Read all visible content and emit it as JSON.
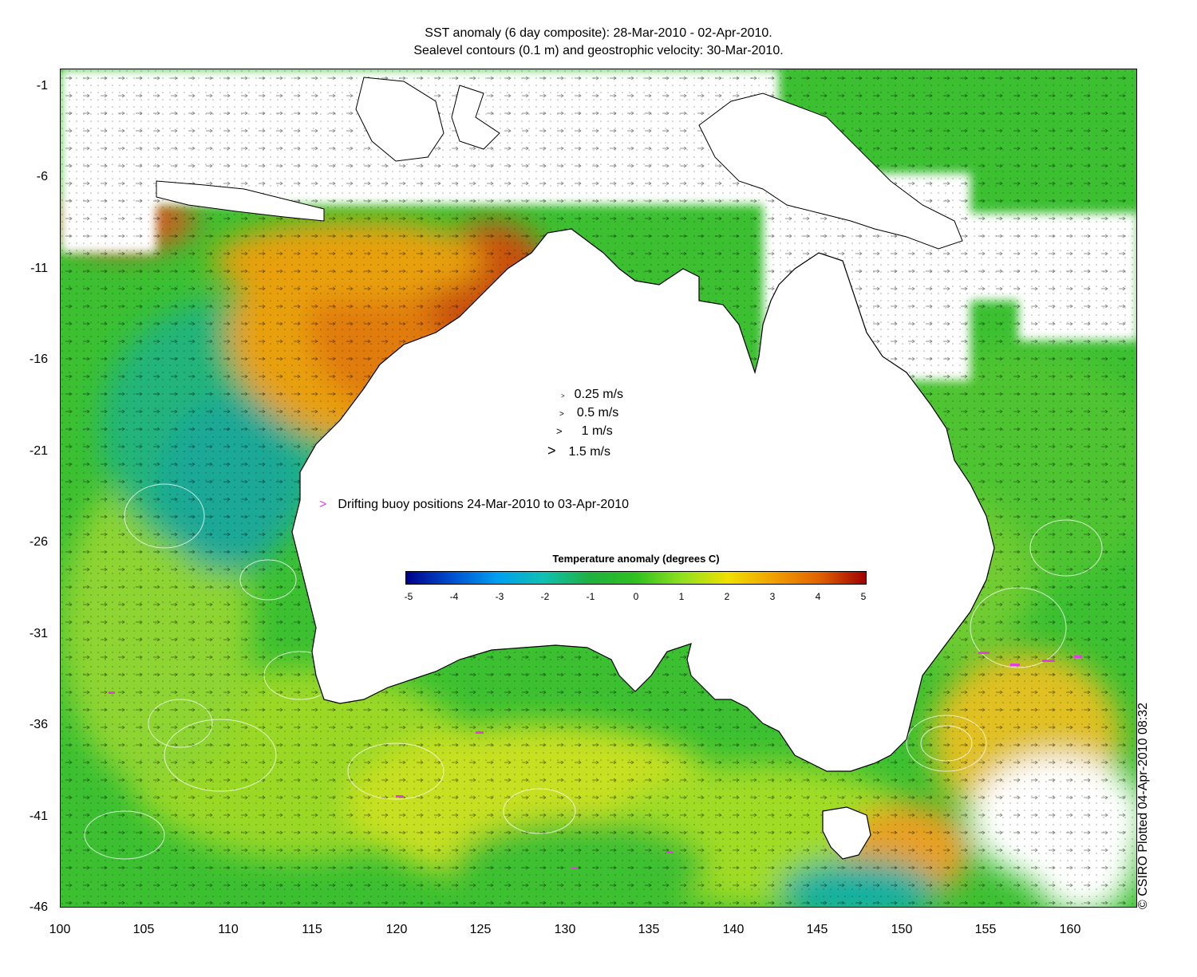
{
  "title": {
    "line1": "SST anomaly (6 day composite): 28-Mar-2010 - 02-Apr-2010.",
    "line2": "Sealevel contours (0.1 m) and geostrophic velocity: 30-Mar-2010."
  },
  "axes": {
    "y_ticks": [
      "-1",
      "-6",
      "-11",
      "-16",
      "-21",
      "-26",
      "-31",
      "-36",
      "-41",
      "-46"
    ],
    "x_ticks": [
      "100",
      "105",
      "110",
      "115",
      "120",
      "125",
      "130",
      "135",
      "140",
      "145",
      "150",
      "155",
      "160"
    ],
    "lon_range": [
      100,
      164
    ],
    "lat_range": [
      -46,
      -0.5
    ]
  },
  "velocity_legend": [
    {
      "label": "0.25 m/s",
      "speed": 0.25
    },
    {
      "label": "0.5 m/s",
      "speed": 0.5
    },
    {
      "label": "1 m/s",
      "speed": 1
    },
    {
      "label": "1.5 m/s",
      "speed": 1.5
    }
  ],
  "buoy_note": {
    "marker": ">",
    "text": "Drifting buoy positions 24-Mar-2010 to 03-Apr-2010"
  },
  "colorbar": {
    "title": "Temperature anomaly (degrees C)",
    "ticks": [
      "-5",
      "-4",
      "-3",
      "-2",
      "-1",
      "0",
      "1",
      "2",
      "3",
      "4",
      "5"
    ],
    "range": [
      -5,
      5
    ],
    "colors": [
      "#00008b",
      "#0050d0",
      "#00a0f0",
      "#10c0b0",
      "#20b040",
      "#30c020",
      "#90e020",
      "#f0e000",
      "#f0a000",
      "#e06000",
      "#a00000"
    ]
  },
  "credit": "© CSIRO Plotted 04-Apr-2010 08:32",
  "colors": {
    "land": "#ffffff",
    "ocean_base": "#3cc032",
    "warm_anomaly": "#e88a10",
    "hot_anomaly": "#c85008",
    "cool_anomaly": "#22b090",
    "buoy": "#e040e0"
  }
}
